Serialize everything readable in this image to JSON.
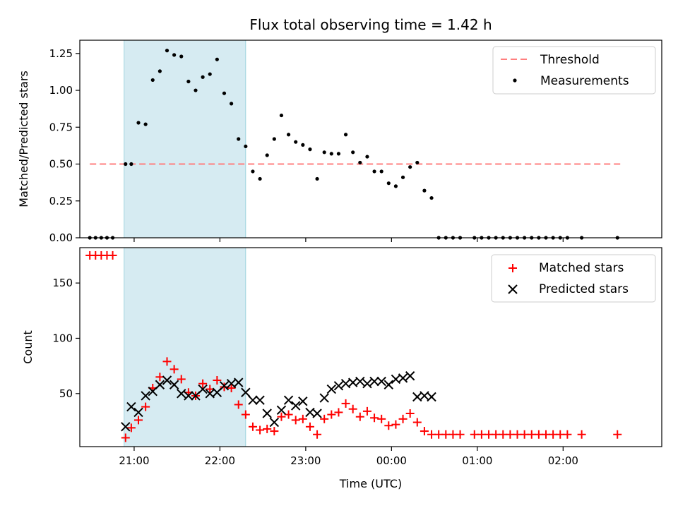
{
  "chart_data": [
    {
      "type": "scatter",
      "title": "Flux total observing time = 1.42 h",
      "ylabel": "Matched/Predicted stars",
      "xlim": [
        "20:22",
        "03:09"
      ],
      "ylim": [
        0,
        1.34
      ],
      "yticks": [
        "0.00",
        "0.25",
        "0.50",
        "0.75",
        "1.00",
        "1.25"
      ],
      "highlight_span": [
        "20:53",
        "22:18"
      ],
      "legend_position": "upper right",
      "colors": {
        "threshold": "#ff7f7f",
        "measurements": "#000000",
        "span": "#add8e6"
      },
      "legend": [
        {
          "label": "Threshold",
          "style": "dashed-line",
          "color": "#ff7f7f"
        },
        {
          "label": "Measurements",
          "style": "dot",
          "color": "#000000"
        }
      ],
      "threshold": {
        "value": 0.5,
        "x_start": "20:29",
        "x_end": "02:42"
      },
      "series": [
        {
          "name": "Measurements",
          "points": [
            [
              "20:29",
              0.0
            ],
            [
              "20:33",
              0.0
            ],
            [
              "20:37",
              0.0
            ],
            [
              "20:41",
              0.0
            ],
            [
              "20:45",
              0.0
            ],
            [
              "20:54",
              0.5
            ],
            [
              "20:58",
              0.5
            ],
            [
              "21:03",
              0.78
            ],
            [
              "21:08",
              0.77
            ],
            [
              "21:13",
              1.07
            ],
            [
              "21:18",
              1.13
            ],
            [
              "21:23",
              1.27
            ],
            [
              "21:28",
              1.24
            ],
            [
              "21:33",
              1.23
            ],
            [
              "21:38",
              1.06
            ],
            [
              "21:43",
              1.0
            ],
            [
              "21:48",
              1.09
            ],
            [
              "21:53",
              1.11
            ],
            [
              "21:58",
              1.21
            ],
            [
              "22:03",
              0.98
            ],
            [
              "22:08",
              0.91
            ],
            [
              "22:13",
              0.67
            ],
            [
              "22:18",
              0.62
            ],
            [
              "22:23",
              0.45
            ],
            [
              "22:28",
              0.4
            ],
            [
              "22:33",
              0.56
            ],
            [
              "22:38",
              0.67
            ],
            [
              "22:43",
              0.83
            ],
            [
              "22:48",
              0.7
            ],
            [
              "22:53",
              0.65
            ],
            [
              "22:58",
              0.63
            ],
            [
              "23:03",
              0.6
            ],
            [
              "23:08",
              0.4
            ],
            [
              "23:13",
              0.58
            ],
            [
              "23:18",
              0.57
            ],
            [
              "23:23",
              0.57
            ],
            [
              "23:28",
              0.7
            ],
            [
              "23:33",
              0.58
            ],
            [
              "23:38",
              0.51
            ],
            [
              "23:43",
              0.55
            ],
            [
              "23:48",
              0.45
            ],
            [
              "23:53",
              0.45
            ],
            [
              "23:58",
              0.37
            ],
            [
              "00:03",
              0.35
            ],
            [
              "00:08",
              0.41
            ],
            [
              "00:13",
              0.48
            ],
            [
              "00:18",
              0.51
            ],
            [
              "00:23",
              0.32
            ],
            [
              "00:28",
              0.27
            ],
            [
              "00:33",
              0.0
            ],
            [
              "00:38",
              0.0
            ],
            [
              "00:43",
              0.0
            ],
            [
              "00:48",
              0.0
            ],
            [
              "00:58",
              0.0
            ],
            [
              "01:03",
              0.0
            ],
            [
              "01:08",
              0.0
            ],
            [
              "01:13",
              0.0
            ],
            [
              "01:18",
              0.0
            ],
            [
              "01:23",
              0.0
            ],
            [
              "01:28",
              0.0
            ],
            [
              "01:33",
              0.0
            ],
            [
              "01:38",
              0.0
            ],
            [
              "01:43",
              0.0
            ],
            [
              "01:48",
              0.0
            ],
            [
              "01:53",
              0.0
            ],
            [
              "01:58",
              0.0
            ],
            [
              "02:03",
              0.0
            ],
            [
              "02:13",
              0.0
            ],
            [
              "02:38",
              0.0
            ]
          ]
        }
      ]
    },
    {
      "type": "scatter",
      "xlabel": "Time (UTC)",
      "ylabel": "Count",
      "xlim": [
        "20:22",
        "03:09"
      ],
      "ylim": [
        2,
        182
      ],
      "xticks": [
        "21:00",
        "22:00",
        "23:00",
        "00:00",
        "01:00",
        "02:00"
      ],
      "yticks": [
        "50",
        "100",
        "150"
      ],
      "highlight_span": [
        "20:53",
        "22:18"
      ],
      "legend_position": "upper right",
      "colors": {
        "matched": "#ff0000",
        "predicted": "#000000",
        "span": "#add8e6"
      },
      "legend": [
        {
          "label": "Matched stars",
          "style": "plus",
          "color": "#ff0000"
        },
        {
          "label": "Predicted stars",
          "style": "cross",
          "color": "#000000"
        }
      ],
      "series": [
        {
          "name": "Matched stars",
          "points": [
            [
              "20:29",
              175
            ],
            [
              "20:33",
              175
            ],
            [
              "20:37",
              175
            ],
            [
              "20:41",
              175
            ],
            [
              "20:45",
              175
            ],
            [
              "20:54",
              10
            ],
            [
              "20:58",
              19
            ],
            [
              "21:03",
              26
            ],
            [
              "21:08",
              38
            ],
            [
              "21:13",
              55
            ],
            [
              "21:18",
              65
            ],
            [
              "21:23",
              79
            ],
            [
              "21:28",
              72
            ],
            [
              "21:33",
              63
            ],
            [
              "21:38",
              51
            ],
            [
              "21:43",
              48
            ],
            [
              "21:48",
              59
            ],
            [
              "21:53",
              54
            ],
            [
              "21:58",
              62
            ],
            [
              "22:03",
              56
            ],
            [
              "22:08",
              55
            ],
            [
              "22:13",
              40
            ],
            [
              "22:18",
              31
            ],
            [
              "22:23",
              20
            ],
            [
              "22:28",
              17
            ],
            [
              "22:33",
              18
            ],
            [
              "22:38",
              16
            ],
            [
              "22:43",
              29
            ],
            [
              "22:48",
              31
            ],
            [
              "22:53",
              26
            ],
            [
              "22:58",
              27
            ],
            [
              "23:03",
              20
            ],
            [
              "23:08",
              13
            ],
            [
              "23:13",
              27
            ],
            [
              "23:18",
              31
            ],
            [
              "23:23",
              33
            ],
            [
              "23:28",
              41
            ],
            [
              "23:33",
              36
            ],
            [
              "23:38",
              29
            ],
            [
              "23:43",
              34
            ],
            [
              "23:48",
              28
            ],
            [
              "23:53",
              27
            ],
            [
              "23:58",
              21
            ],
            [
              "00:03",
              22
            ],
            [
              "00:08",
              27
            ],
            [
              "00:13",
              32
            ],
            [
              "00:18",
              24
            ],
            [
              "00:23",
              16
            ],
            [
              "00:28",
              13
            ],
            [
              "00:33",
              13
            ],
            [
              "00:38",
              13
            ],
            [
              "00:43",
              13
            ],
            [
              "00:48",
              13
            ],
            [
              "00:58",
              13
            ],
            [
              "01:03",
              13
            ],
            [
              "01:08",
              13
            ],
            [
              "01:13",
              13
            ],
            [
              "01:18",
              13
            ],
            [
              "01:23",
              13
            ],
            [
              "01:28",
              13
            ],
            [
              "01:33",
              13
            ],
            [
              "01:38",
              13
            ],
            [
              "01:43",
              13
            ],
            [
              "01:48",
              13
            ],
            [
              "01:53",
              13
            ],
            [
              "01:58",
              13
            ],
            [
              "02:03",
              13
            ],
            [
              "02:13",
              13
            ],
            [
              "02:38",
              13
            ]
          ]
        },
        {
          "name": "Predicted stars",
          "points": [
            [
              "20:54",
              20
            ],
            [
              "20:58",
              38
            ],
            [
              "21:03",
              33
            ],
            [
              "21:08",
              48
            ],
            [
              "21:13",
              52
            ],
            [
              "21:18",
              58
            ],
            [
              "21:23",
              62
            ],
            [
              "21:28",
              58
            ],
            [
              "21:33",
              50
            ],
            [
              "21:38",
              48
            ],
            [
              "21:43",
              48
            ],
            [
              "21:48",
              54
            ],
            [
              "21:53",
              50
            ],
            [
              "21:58",
              51
            ],
            [
              "22:03",
              57
            ],
            [
              "22:08",
              59
            ],
            [
              "22:13",
              60
            ],
            [
              "22:18",
              51
            ],
            [
              "22:23",
              44
            ],
            [
              "22:28",
              44
            ],
            [
              "22:33",
              32
            ],
            [
              "22:38",
              24
            ],
            [
              "22:43",
              35
            ],
            [
              "22:48",
              44
            ],
            [
              "22:53",
              39
            ],
            [
              "22:58",
              43
            ],
            [
              "23:03",
              33
            ],
            [
              "23:08",
              32
            ],
            [
              "23:13",
              46
            ],
            [
              "23:18",
              54
            ],
            [
              "23:23",
              57
            ],
            [
              "23:28",
              59
            ],
            [
              "23:33",
              60
            ],
            [
              "23:38",
              61
            ],
            [
              "23:43",
              59
            ],
            [
              "23:48",
              61
            ],
            [
              "23:53",
              61
            ],
            [
              "23:58",
              58
            ],
            [
              "00:03",
              63
            ],
            [
              "00:08",
              64
            ],
            [
              "00:13",
              66
            ],
            [
              "00:18",
              47
            ],
            [
              "00:23",
              48
            ],
            [
              "00:28",
              47
            ]
          ]
        }
      ]
    }
  ]
}
